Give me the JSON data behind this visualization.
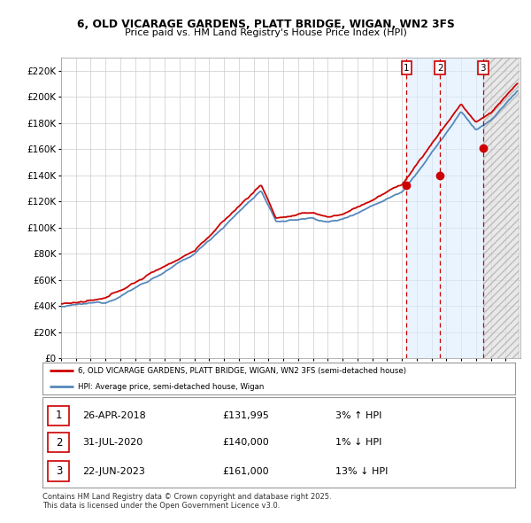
{
  "title_line1": "6, OLD VICARAGE GARDENS, PLATT BRIDGE, WIGAN, WN2 3FS",
  "title_line2": "Price paid vs. HM Land Registry's House Price Index (HPI)",
  "ylim": [
    0,
    230000
  ],
  "xlim_start": 1995.0,
  "xlim_end": 2026.0,
  "sale_dates_float": [
    2018.32,
    2020.58,
    2023.47
  ],
  "sale_prices": [
    131995,
    140000,
    161000
  ],
  "sale_labels": [
    "1",
    "2",
    "3"
  ],
  "sale_info": [
    [
      "1",
      "26-APR-2018",
      "£131,995",
      "3% ↑ HPI"
    ],
    [
      "2",
      "31-JUL-2020",
      "£140,000",
      "1% ↓ HPI"
    ],
    [
      "3",
      "22-JUN-2023",
      "£161,000",
      "13% ↓ HPI"
    ]
  ],
  "legend_line1": "6, OLD VICARAGE GARDENS, PLATT BRIDGE, WIGAN, WN2 3FS (semi-detached house)",
  "legend_line2": "HPI: Average price, semi-detached house, Wigan",
  "footer": "Contains HM Land Registry data © Crown copyright and database right 2025.\nThis data is licensed under the Open Government Licence v3.0.",
  "line_color_red": "#cc0000",
  "line_color_blue": "#5588bb",
  "bg_color": "#ffffff",
  "grid_color": "#cccccc",
  "shade_blue_color": "#ddeeff",
  "shade_grey_color": "#e0e0e0",
  "dashed_line_color": "#cc0000",
  "marker_color": "#cc0000"
}
